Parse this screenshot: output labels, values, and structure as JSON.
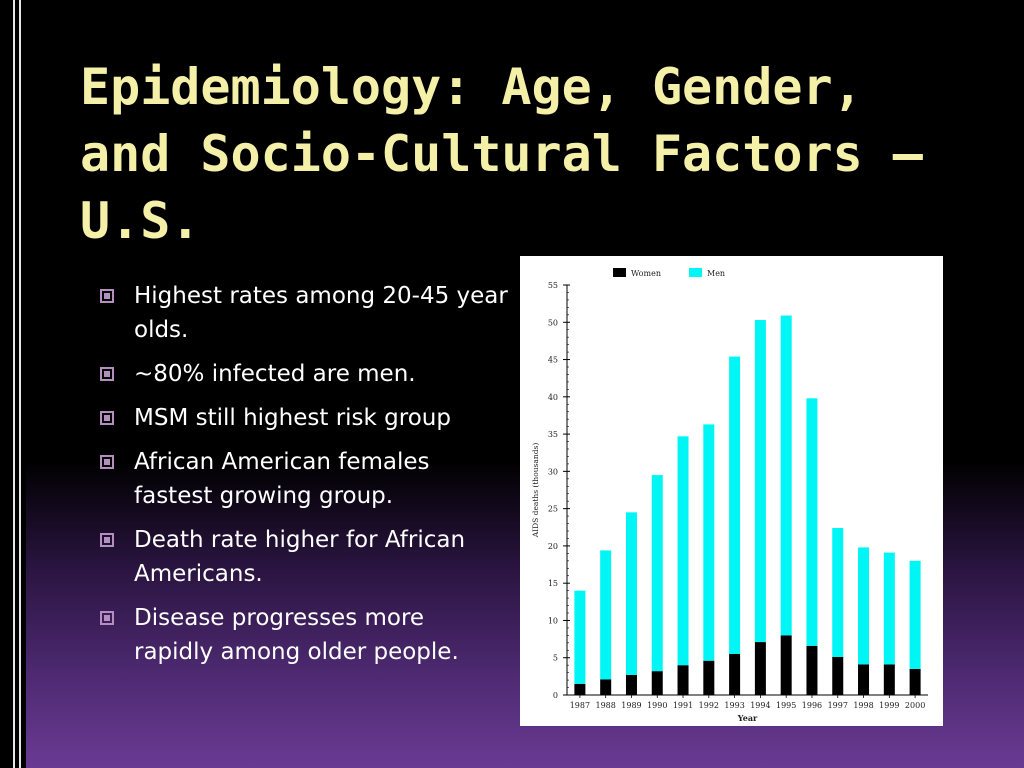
{
  "slide": {
    "title": "Epidemiology: Age, Gender, and Socio-Cultural Factors – U.S.",
    "bullets": [
      "Highest rates among 20-45 year olds.",
      "~80% infected are men.",
      "MSM still highest risk group",
      "African American females fastest growing group.",
      "Death rate higher for African Americans.",
      "Disease progresses more rapidly among older people."
    ]
  },
  "chart_data": {
    "type": "bar",
    "stacked": true,
    "xlabel": "Year",
    "ylabel": "AIDS deaths (thousands)",
    "ylim": [
      0,
      55
    ],
    "yticks": [
      0,
      5,
      10,
      15,
      20,
      25,
      30,
      35,
      40,
      45,
      50,
      55
    ],
    "legend_position": "top",
    "categories": [
      "1987",
      "1988",
      "1989",
      "1990",
      "1991",
      "1992",
      "1993",
      "1994",
      "1995",
      "1996",
      "1997",
      "1998",
      "1999",
      "2000"
    ],
    "series": [
      {
        "name": "Women",
        "color": "#000000",
        "values": [
          1.5,
          2.1,
          2.7,
          3.2,
          4.0,
          4.6,
          5.5,
          7.1,
          8.0,
          6.6,
          5.1,
          4.1,
          4.1,
          3.5
        ]
      },
      {
        "name": "Men",
        "color": "#00f5f5",
        "values": [
          12.5,
          17.3,
          21.8,
          26.3,
          30.7,
          31.7,
          39.9,
          43.2,
          42.9,
          33.2,
          17.3,
          15.7,
          15.0,
          14.5
        ]
      }
    ]
  }
}
